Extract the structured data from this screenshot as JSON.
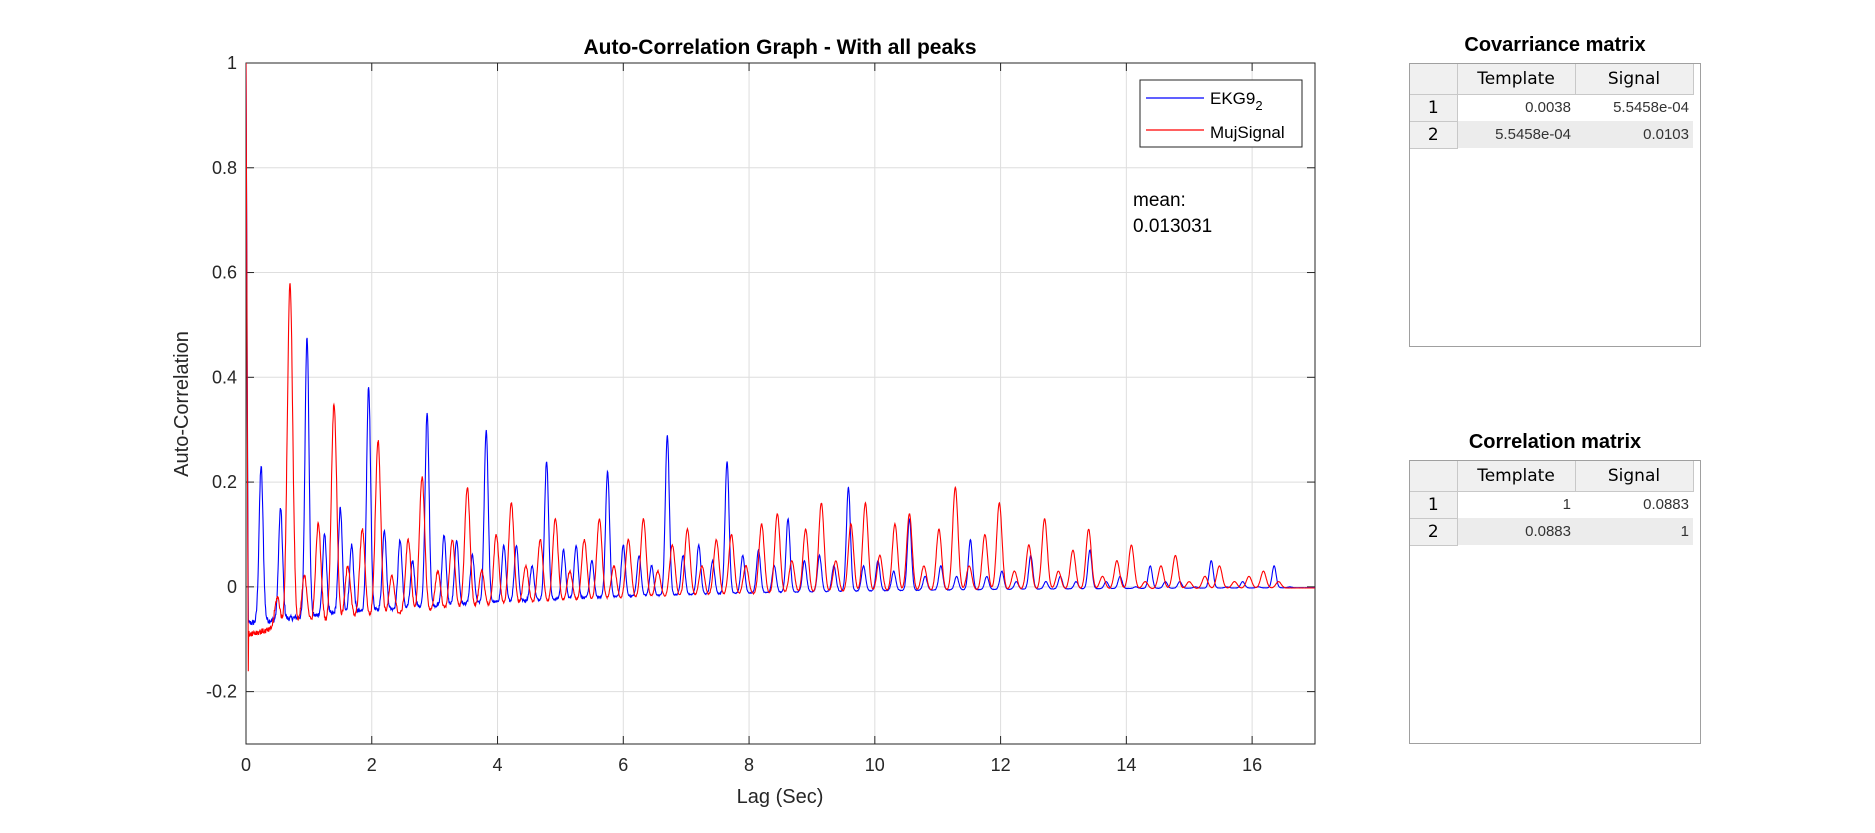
{
  "chart_data": {
    "type": "line",
    "title": "Auto-Correlation Graph - With all peaks",
    "xlabel": "Lag (Sec)",
    "ylabel": "Auto-Correlation",
    "xlim": [
      0,
      17
    ],
    "ylim": [
      -0.3,
      1
    ],
    "xticks": [
      0,
      2,
      4,
      6,
      8,
      10,
      12,
      14,
      16
    ],
    "yticks": [
      -0.2,
      0,
      0.2,
      0.4,
      0.6,
      0.8,
      1
    ],
    "ytick_labels": [
      "-0.2",
      "0",
      "0.2",
      "0.4",
      "0.6",
      "0.8",
      "1"
    ],
    "grid": true,
    "legend_position": "top-right",
    "series": [
      {
        "name": "EKG9",
        "name_subscript": "2",
        "color": "#0000ff",
        "peaks": [
          {
            "x": 0.24,
            "y": 0.23
          },
          {
            "x": 0.55,
            "y": 0.15
          },
          {
            "x": 0.97,
            "y": 0.48
          },
          {
            "x": 1.25,
            "y": 0.1
          },
          {
            "x": 1.5,
            "y": 0.15
          },
          {
            "x": 1.68,
            "y": 0.08
          },
          {
            "x": 1.95,
            "y": 0.38
          },
          {
            "x": 2.2,
            "y": 0.11
          },
          {
            "x": 2.45,
            "y": 0.09
          },
          {
            "x": 2.65,
            "y": 0.05
          },
          {
            "x": 2.88,
            "y": 0.33
          },
          {
            "x": 3.15,
            "y": 0.1
          },
          {
            "x": 3.35,
            "y": 0.09
          },
          {
            "x": 3.6,
            "y": 0.06
          },
          {
            "x": 3.82,
            "y": 0.3
          },
          {
            "x": 4.1,
            "y": 0.08
          },
          {
            "x": 4.3,
            "y": 0.08
          },
          {
            "x": 4.55,
            "y": 0.04
          },
          {
            "x": 4.78,
            "y": 0.24
          },
          {
            "x": 5.05,
            "y": 0.07
          },
          {
            "x": 5.25,
            "y": 0.08
          },
          {
            "x": 5.5,
            "y": 0.05
          },
          {
            "x": 5.75,
            "y": 0.22
          },
          {
            "x": 6.0,
            "y": 0.08
          },
          {
            "x": 6.25,
            "y": 0.06
          },
          {
            "x": 6.45,
            "y": 0.04
          },
          {
            "x": 6.7,
            "y": 0.29
          },
          {
            "x": 6.95,
            "y": 0.06
          },
          {
            "x": 7.2,
            "y": 0.08
          },
          {
            "x": 7.42,
            "y": 0.05
          },
          {
            "x": 7.65,
            "y": 0.24
          },
          {
            "x": 7.9,
            "y": 0.06
          },
          {
            "x": 8.15,
            "y": 0.07
          },
          {
            "x": 8.4,
            "y": 0.04
          },
          {
            "x": 8.62,
            "y": 0.13
          },
          {
            "x": 8.88,
            "y": 0.05
          },
          {
            "x": 9.12,
            "y": 0.06
          },
          {
            "x": 9.35,
            "y": 0.04
          },
          {
            "x": 9.58,
            "y": 0.19
          },
          {
            "x": 9.82,
            "y": 0.04
          },
          {
            "x": 10.05,
            "y": 0.05
          },
          {
            "x": 10.3,
            "y": 0.03
          },
          {
            "x": 10.55,
            "y": 0.13
          },
          {
            "x": 10.8,
            "y": 0.02
          },
          {
            "x": 11.05,
            "y": 0.04
          },
          {
            "x": 11.3,
            "y": 0.02
          },
          {
            "x": 11.52,
            "y": 0.09
          },
          {
            "x": 11.78,
            "y": 0.02
          },
          {
            "x": 12.02,
            "y": 0.03
          },
          {
            "x": 12.25,
            "y": 0.01
          },
          {
            "x": 12.48,
            "y": 0.06
          },
          {
            "x": 12.72,
            "y": 0.01
          },
          {
            "x": 12.95,
            "y": 0.02
          },
          {
            "x": 13.2,
            "y": 0.01
          },
          {
            "x": 13.42,
            "y": 0.07
          },
          {
            "x": 13.68,
            "y": 0.01
          },
          {
            "x": 13.9,
            "y": 0.02
          },
          {
            "x": 14.15,
            "y": 0.0
          },
          {
            "x": 14.38,
            "y": 0.04
          },
          {
            "x": 14.62,
            "y": 0.01
          },
          {
            "x": 14.85,
            "y": 0.01
          },
          {
            "x": 15.1,
            "y": 0.0
          },
          {
            "x": 15.35,
            "y": 0.05
          },
          {
            "x": 15.6,
            "y": 0.0
          },
          {
            "x": 15.85,
            "y": 0.01
          },
          {
            "x": 16.1,
            "y": 0.0
          },
          {
            "x": 16.35,
            "y": 0.04
          },
          {
            "x": 16.6,
            "y": 0.0
          }
        ]
      },
      {
        "name": "MujSignal",
        "color": "#ff0000",
        "peaks": [
          {
            "x": 0.5,
            "y": -0.02
          },
          {
            "x": 0.7,
            "y": 0.58
          },
          {
            "x": 0.93,
            "y": 0.02
          },
          {
            "x": 1.15,
            "y": 0.12
          },
          {
            "x": 1.4,
            "y": 0.35
          },
          {
            "x": 1.62,
            "y": 0.04
          },
          {
            "x": 1.85,
            "y": 0.11
          },
          {
            "x": 2.1,
            "y": 0.28
          },
          {
            "x": 2.32,
            "y": 0.02
          },
          {
            "x": 2.58,
            "y": 0.09
          },
          {
            "x": 2.8,
            "y": 0.21
          },
          {
            "x": 3.05,
            "y": 0.03
          },
          {
            "x": 3.28,
            "y": 0.09
          },
          {
            "x": 3.52,
            "y": 0.19
          },
          {
            "x": 3.75,
            "y": 0.03
          },
          {
            "x": 3.98,
            "y": 0.1
          },
          {
            "x": 4.22,
            "y": 0.16
          },
          {
            "x": 4.45,
            "y": 0.04
          },
          {
            "x": 4.68,
            "y": 0.09
          },
          {
            "x": 4.92,
            "y": 0.13
          },
          {
            "x": 5.15,
            "y": 0.03
          },
          {
            "x": 5.38,
            "y": 0.09
          },
          {
            "x": 5.62,
            "y": 0.13
          },
          {
            "x": 5.85,
            "y": 0.04
          },
          {
            "x": 6.08,
            "y": 0.09
          },
          {
            "x": 6.32,
            "y": 0.13
          },
          {
            "x": 6.55,
            "y": 0.03
          },
          {
            "x": 6.78,
            "y": 0.08
          },
          {
            "x": 7.02,
            "y": 0.11
          },
          {
            "x": 7.25,
            "y": 0.04
          },
          {
            "x": 7.48,
            "y": 0.09
          },
          {
            "x": 7.72,
            "y": 0.1
          },
          {
            "x": 7.95,
            "y": 0.04
          },
          {
            "x": 8.2,
            "y": 0.12
          },
          {
            "x": 8.45,
            "y": 0.14
          },
          {
            "x": 8.68,
            "y": 0.05
          },
          {
            "x": 8.9,
            "y": 0.11
          },
          {
            "x": 9.15,
            "y": 0.16
          },
          {
            "x": 9.38,
            "y": 0.05
          },
          {
            "x": 9.62,
            "y": 0.12
          },
          {
            "x": 9.85,
            "y": 0.16
          },
          {
            "x": 10.08,
            "y": 0.06
          },
          {
            "x": 10.32,
            "y": 0.12
          },
          {
            "x": 10.55,
            "y": 0.14
          },
          {
            "x": 10.78,
            "y": 0.04
          },
          {
            "x": 11.02,
            "y": 0.11
          },
          {
            "x": 11.28,
            "y": 0.19
          },
          {
            "x": 11.5,
            "y": 0.04
          },
          {
            "x": 11.75,
            "y": 0.1
          },
          {
            "x": 11.98,
            "y": 0.16
          },
          {
            "x": 12.22,
            "y": 0.03
          },
          {
            "x": 12.45,
            "y": 0.08
          },
          {
            "x": 12.7,
            "y": 0.13
          },
          {
            "x": 12.92,
            "y": 0.03
          },
          {
            "x": 13.15,
            "y": 0.07
          },
          {
            "x": 13.4,
            "y": 0.11
          },
          {
            "x": 13.62,
            "y": 0.02
          },
          {
            "x": 13.85,
            "y": 0.05
          },
          {
            "x": 14.08,
            "y": 0.08
          },
          {
            "x": 14.3,
            "y": 0.01
          },
          {
            "x": 14.55,
            "y": 0.04
          },
          {
            "x": 14.78,
            "y": 0.06
          },
          {
            "x": 15.0,
            "y": 0.01
          },
          {
            "x": 15.25,
            "y": 0.02
          },
          {
            "x": 15.48,
            "y": 0.04
          },
          {
            "x": 15.72,
            "y": 0.01
          },
          {
            "x": 15.95,
            "y": 0.02
          },
          {
            "x": 16.18,
            "y": 0.03
          },
          {
            "x": 16.42,
            "y": 0.01
          }
        ]
      }
    ],
    "annotation": {
      "label": "mean:",
      "value": "0.013031"
    }
  },
  "covariance_matrix": {
    "title": "Covarriance matrix",
    "columns": [
      "Template",
      "Signal"
    ],
    "rows": [
      {
        "label": "1",
        "values": [
          "0.0038",
          "5.5458e-04"
        ]
      },
      {
        "label": "2",
        "values": [
          "5.5458e-04",
          "0.0103"
        ]
      }
    ]
  },
  "correlation_matrix": {
    "title": "Correlation matrix",
    "columns": [
      "Template",
      "Signal"
    ],
    "rows": [
      {
        "label": "1",
        "values": [
          "1",
          "0.0883"
        ]
      },
      {
        "label": "2",
        "values": [
          "0.0883",
          "1"
        ]
      }
    ]
  }
}
